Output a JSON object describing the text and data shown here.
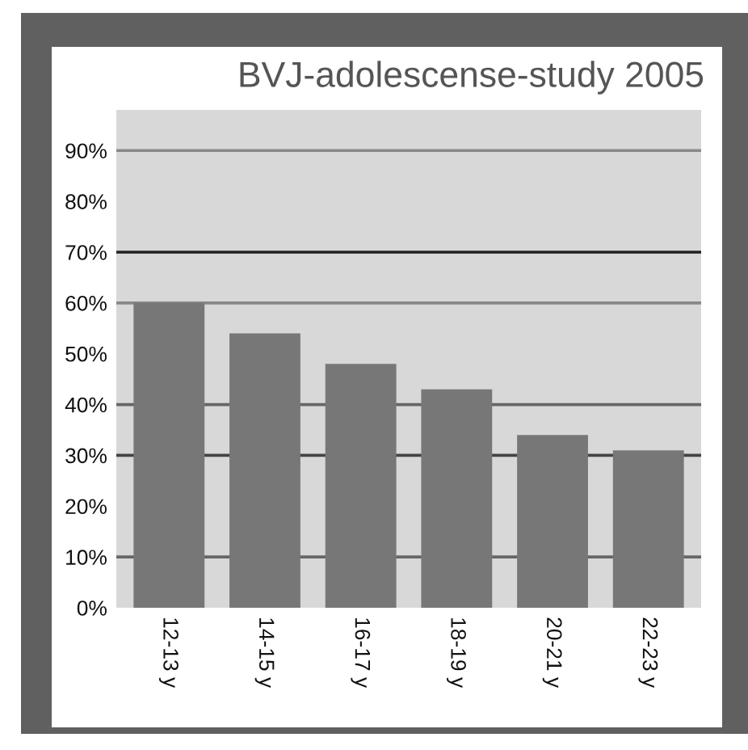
{
  "chart_data": {
    "type": "bar",
    "title": "BVJ-adolescense-study 2005",
    "categories": [
      "12-13 y",
      "14-15 y",
      "16-17 y",
      "18-19 y",
      "20-21 y",
      "22-23 y"
    ],
    "values": [
      60,
      54,
      48,
      43,
      34,
      31
    ],
    "color": "#777777",
    "ylim": [
      0,
      98
    ],
    "yticks": [
      {
        "value": 0,
        "label": "0%"
      },
      {
        "value": 10,
        "label": "10%"
      },
      {
        "value": 20,
        "label": "20%"
      },
      {
        "value": 30,
        "label": "30%"
      },
      {
        "value": 40,
        "label": "40%"
      },
      {
        "value": 50,
        "label": "50%"
      },
      {
        "value": 60,
        "label": "60%"
      },
      {
        "value": 70,
        "label": "70%"
      },
      {
        "value": 80,
        "label": "80%"
      },
      {
        "value": 90,
        "label": "90%"
      }
    ],
    "ref_lines": [
      {
        "axis": "y",
        "value": 70,
        "color": "#222222"
      },
      {
        "axis": "y",
        "value": 30,
        "color": "#444444"
      },
      {
        "axis": "y",
        "value": 90,
        "color": "#888888"
      },
      {
        "axis": "y",
        "value": 60,
        "color": "#888888"
      },
      {
        "axis": "y",
        "value": 40,
        "color": "#666666"
      },
      {
        "axis": "y",
        "value": 10,
        "color": "#666666"
      }
    ],
    "grid": false,
    "legend": false
  }
}
